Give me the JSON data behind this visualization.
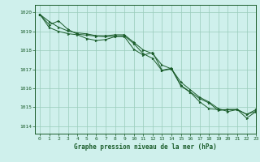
{
  "xlabel": "Graphe pression niveau de la mer (hPa)",
  "xlim": [
    -0.5,
    23
  ],
  "ylim": [
    1013.6,
    1020.4
  ],
  "yticks": [
    1014,
    1015,
    1016,
    1017,
    1018,
    1019,
    1020
  ],
  "xticks": [
    0,
    1,
    2,
    3,
    4,
    5,
    6,
    7,
    8,
    9,
    10,
    11,
    12,
    13,
    14,
    15,
    16,
    17,
    18,
    19,
    20,
    21,
    22,
    23
  ],
  "bg_color": "#cff0ec",
  "grid_color": "#99ccbb",
  "line_color": "#1a5c2a",
  "line1": [
    1019.9,
    1019.35,
    1019.55,
    1019.1,
    1018.85,
    1018.8,
    1018.75,
    1018.72,
    1018.75,
    1018.72,
    1018.05,
    1017.75,
    1017.88,
    1016.95,
    1017.05,
    1016.15,
    1015.8,
    1015.45,
    1015.22,
    1014.82,
    1014.88,
    1014.88,
    1014.62,
    1014.78
  ],
  "line2": [
    1019.9,
    1019.2,
    1019.0,
    1018.88,
    1018.82,
    1018.62,
    1018.52,
    1018.57,
    1018.72,
    1018.77,
    1018.35,
    1017.82,
    1017.57,
    1016.92,
    1017.02,
    1016.12,
    1015.78,
    1015.28,
    1014.92,
    1014.87,
    1014.87,
    1014.87,
    1014.42,
    1014.77
  ],
  "line3": [
    1019.9,
    1019.52,
    1019.22,
    1019.02,
    1018.92,
    1018.87,
    1018.77,
    1018.77,
    1018.82,
    1018.82,
    1018.42,
    1018.02,
    1017.82,
    1017.22,
    1017.02,
    1016.32,
    1015.92,
    1015.52,
    1015.27,
    1014.92,
    1014.77,
    1014.87,
    1014.62,
    1014.87
  ]
}
